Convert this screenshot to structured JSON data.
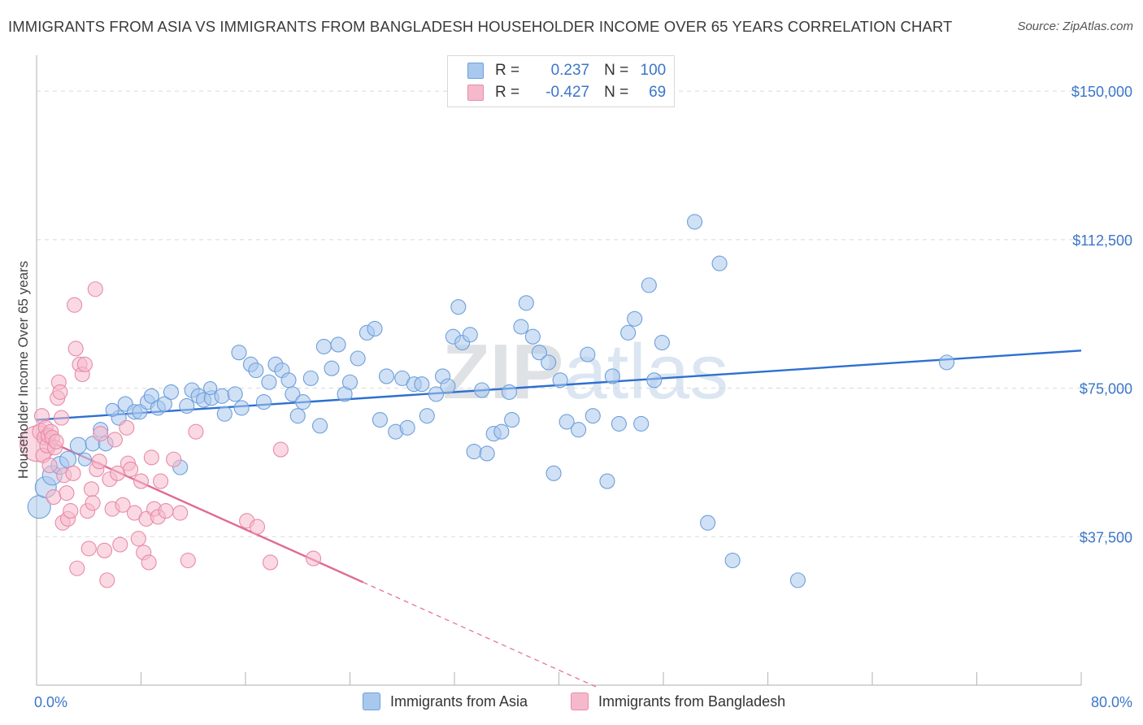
{
  "title": "IMMIGRANTS FROM ASIA VS IMMIGRANTS FROM BANGLADESH HOUSEHOLDER INCOME OVER 65 YEARS CORRELATION CHART",
  "source": "Source: ZipAtlas.com",
  "watermark": "ZIPatlas",
  "legend": {
    "r_label": "R =",
    "n_label": "N =",
    "rows": [
      {
        "r": "0.237",
        "n": "100",
        "color": "#a9c8ee"
      },
      {
        "r": "-0.427",
        "n": "69",
        "color": "#f6b9cc"
      }
    ]
  },
  "colors": {
    "asia_fill": "#a9c8ee",
    "asia_stroke": "#6e9fd9",
    "asia_line": "#2e6fd1",
    "bangladesh_fill": "#f6b9cc",
    "bangladesh_stroke": "#e88aaa",
    "bangladesh_line": "#e06a95",
    "tick_label": "#3b76c9"
  },
  "chart_data": {
    "type": "scatter",
    "title": "IMMIGRANTS FROM ASIA VS IMMIGRANTS FROM BANGLADESH HOUSEHOLDER INCOME OVER 65 YEARS CORRELATION CHART",
    "xlabel": "",
    "ylabel": "Householder Income Over 65 years",
    "xlim": [
      0,
      80
    ],
    "ylim": [
      0,
      157000
    ],
    "x_tick_labels": [
      "0.0%",
      "80.0%"
    ],
    "y_ticks": [
      37500,
      75000,
      112500,
      150000
    ],
    "y_tick_labels": [
      "$37,500",
      "$75,000",
      "$112,500",
      "$150,000"
    ],
    "grid": true,
    "legend_position": "top-center",
    "series": [
      {
        "name": "Immigrants from Asia",
        "trend": {
          "x0": 0,
          "y0": 67000,
          "x1": 80,
          "y1": 84500,
          "extend_to": null
        },
        "points": [
          [
            0.2,
            45000,
            14
          ],
          [
            0.7,
            50000,
            13
          ],
          [
            1.2,
            53000,
            12
          ],
          [
            1.8,
            55500,
            11
          ],
          [
            2.4,
            57000,
            10
          ],
          [
            3.2,
            60500,
            10
          ],
          [
            4.3,
            61000,
            9
          ],
          [
            4.9,
            64500,
            9
          ],
          [
            5.3,
            61000,
            9
          ],
          [
            6.3,
            67500,
            9
          ],
          [
            6.8,
            71000,
            9
          ],
          [
            7.5,
            69000,
            9
          ],
          [
            7.9,
            69000,
            9
          ],
          [
            8.5,
            71500,
            9
          ],
          [
            8.8,
            73000,
            9
          ],
          [
            9.3,
            70000,
            9
          ],
          [
            9.8,
            71000,
            9
          ],
          [
            10.3,
            74000,
            9
          ],
          [
            11.0,
            55000,
            9
          ],
          [
            11.5,
            70500,
            9
          ],
          [
            11.9,
            74500,
            9
          ],
          [
            12.4,
            73000,
            9
          ],
          [
            12.8,
            72000,
            9
          ],
          [
            13.4,
            72500,
            9
          ],
          [
            14.2,
            73000,
            9
          ],
          [
            14.4,
            68500,
            9
          ],
          [
            15.2,
            73500,
            9
          ],
          [
            15.5,
            84000,
            9
          ],
          [
            15.7,
            70000,
            9
          ],
          [
            16.4,
            81000,
            9
          ],
          [
            16.8,
            79500,
            9
          ],
          [
            17.4,
            71500,
            9
          ],
          [
            17.8,
            76500,
            9
          ],
          [
            18.3,
            81000,
            9
          ],
          [
            18.8,
            79500,
            9
          ],
          [
            19.3,
            77000,
            9
          ],
          [
            19.6,
            73500,
            9
          ],
          [
            20.0,
            68000,
            9
          ],
          [
            20.4,
            71500,
            9
          ],
          [
            21.0,
            77500,
            9
          ],
          [
            21.7,
            65500,
            9
          ],
          [
            22.0,
            85500,
            9
          ],
          [
            22.6,
            80000,
            9
          ],
          [
            23.1,
            86000,
            9
          ],
          [
            23.6,
            73500,
            9
          ],
          [
            24.0,
            76500,
            9
          ],
          [
            24.6,
            82500,
            9
          ],
          [
            25.3,
            89000,
            9
          ],
          [
            25.9,
            90000,
            9
          ],
          [
            26.3,
            67000,
            9
          ],
          [
            26.8,
            78000,
            9
          ],
          [
            27.5,
            64000,
            9
          ],
          [
            28.0,
            77500,
            9
          ],
          [
            28.4,
            65000,
            9
          ],
          [
            28.9,
            76000,
            9
          ],
          [
            29.5,
            76000,
            9
          ],
          [
            29.9,
            68000,
            9
          ],
          [
            30.6,
            73500,
            9
          ],
          [
            31.1,
            78000,
            9
          ],
          [
            31.5,
            75500,
            9
          ],
          [
            31.9,
            88000,
            9
          ],
          [
            32.3,
            95500,
            9
          ],
          [
            32.6,
            86500,
            9
          ],
          [
            33.2,
            88500,
            9
          ],
          [
            33.5,
            59000,
            9
          ],
          [
            34.1,
            74500,
            9
          ],
          [
            34.5,
            58500,
            9
          ],
          [
            35.0,
            63500,
            9
          ],
          [
            35.6,
            64000,
            9
          ],
          [
            36.2,
            74000,
            9
          ],
          [
            36.4,
            67000,
            9
          ],
          [
            37.1,
            90500,
            9
          ],
          [
            37.5,
            96500,
            9
          ],
          [
            38.0,
            88000,
            9
          ],
          [
            38.5,
            84000,
            9
          ],
          [
            39.2,
            81500,
            9
          ],
          [
            39.6,
            53500,
            9
          ],
          [
            40.1,
            77000,
            9
          ],
          [
            40.6,
            66500,
            9
          ],
          [
            41.5,
            64500,
            9
          ],
          [
            42.2,
            83500,
            9
          ],
          [
            42.6,
            68000,
            9
          ],
          [
            43.7,
            51500,
            9
          ],
          [
            44.1,
            78000,
            9
          ],
          [
            44.6,
            66000,
            9
          ],
          [
            45.3,
            89000,
            9
          ],
          [
            45.8,
            92500,
            9
          ],
          [
            46.3,
            66000,
            9
          ],
          [
            46.9,
            101000,
            9
          ],
          [
            47.3,
            77000,
            9
          ],
          [
            47.9,
            86500,
            9
          ],
          [
            50.4,
            117000,
            9
          ],
          [
            51.4,
            41000,
            9
          ],
          [
            52.3,
            106500,
            9
          ],
          [
            53.3,
            31500,
            9
          ],
          [
            58.3,
            26500,
            9
          ],
          [
            69.7,
            81500,
            9
          ],
          [
            3.7,
            57000,
            8
          ],
          [
            5.8,
            69500,
            8
          ],
          [
            13.3,
            75000,
            8
          ]
        ]
      },
      {
        "name": "Immigrants from Bangladesh",
        "trend": {
          "x0": 0,
          "y0": 63000,
          "x1": 25,
          "y1": 26000,
          "extend_to": 43
        },
        "points": [
          [
            0.1,
            61000,
            22
          ],
          [
            0.3,
            64000,
            10
          ],
          [
            0.4,
            68000,
            9
          ],
          [
            0.5,
            58000,
            9
          ],
          [
            0.6,
            62500,
            9
          ],
          [
            0.7,
            65000,
            9
          ],
          [
            0.8,
            60500,
            9
          ],
          [
            0.9,
            63000,
            9
          ],
          [
            1.0,
            55500,
            9
          ],
          [
            1.1,
            64000,
            9
          ],
          [
            1.2,
            62500,
            9
          ],
          [
            1.3,
            47500,
            9
          ],
          [
            1.4,
            60000,
            9
          ],
          [
            1.5,
            61500,
            9
          ],
          [
            1.6,
            72500,
            9
          ],
          [
            1.7,
            76500,
            9
          ],
          [
            1.8,
            74000,
            9
          ],
          [
            1.9,
            67500,
            9
          ],
          [
            2.0,
            41000,
            9
          ],
          [
            2.1,
            53000,
            9
          ],
          [
            2.3,
            48500,
            9
          ],
          [
            2.4,
            42000,
            9
          ],
          [
            2.6,
            44000,
            9
          ],
          [
            2.8,
            53500,
            9
          ],
          [
            2.9,
            96000,
            9
          ],
          [
            3.0,
            85000,
            9
          ],
          [
            3.1,
            29500,
            9
          ],
          [
            3.3,
            81000,
            9
          ],
          [
            3.5,
            78500,
            9
          ],
          [
            3.7,
            81000,
            9
          ],
          [
            3.9,
            44000,
            9
          ],
          [
            4.0,
            34500,
            9
          ],
          [
            4.2,
            49500,
            9
          ],
          [
            4.3,
            46000,
            9
          ],
          [
            4.5,
            100000,
            9
          ],
          [
            4.6,
            54500,
            9
          ],
          [
            4.8,
            56500,
            9
          ],
          [
            4.9,
            63500,
            9
          ],
          [
            5.2,
            34000,
            9
          ],
          [
            5.4,
            26500,
            9
          ],
          [
            5.6,
            52000,
            9
          ],
          [
            5.8,
            44500,
            9
          ],
          [
            6.0,
            62000,
            9
          ],
          [
            6.2,
            53500,
            9
          ],
          [
            6.4,
            35500,
            9
          ],
          [
            6.6,
            45500,
            9
          ],
          [
            6.9,
            65000,
            9
          ],
          [
            7.0,
            56000,
            9
          ],
          [
            7.2,
            54500,
            9
          ],
          [
            7.5,
            43500,
            9
          ],
          [
            7.8,
            37000,
            9
          ],
          [
            8.0,
            51500,
            9
          ],
          [
            8.2,
            33500,
            9
          ],
          [
            8.4,
            42000,
            9
          ],
          [
            8.6,
            31000,
            9
          ],
          [
            8.8,
            57500,
            9
          ],
          [
            9.0,
            44500,
            9
          ],
          [
            9.3,
            42500,
            9
          ],
          [
            9.5,
            51500,
            9
          ],
          [
            9.9,
            44000,
            9
          ],
          [
            10.5,
            57000,
            9
          ],
          [
            11.0,
            43500,
            9
          ],
          [
            11.6,
            31500,
            9
          ],
          [
            12.2,
            64000,
            9
          ],
          [
            16.1,
            41500,
            9
          ],
          [
            16.9,
            40000,
            9
          ],
          [
            17.9,
            31000,
            9
          ],
          [
            18.7,
            59500,
            9
          ],
          [
            21.2,
            32000,
            9
          ]
        ]
      }
    ]
  }
}
